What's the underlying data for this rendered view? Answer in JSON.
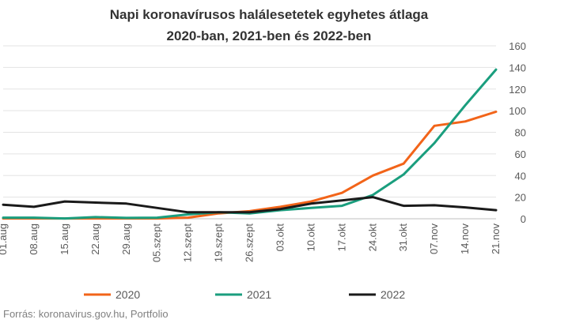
{
  "chart_data": {
    "type": "line",
    "title_lines": [
      "Napi koronavírusos halálesetetek egyhetes átlaga",
      "2020-ban, 2021-ben és 2022-ben"
    ],
    "categories": [
      "01.aug",
      "08.aug",
      "15.aug",
      "22.aug",
      "29.aug",
      "05.szept",
      "12.szept",
      "19.szept",
      "26.szept",
      "03.okt",
      "10.okt",
      "17.okt",
      "24.okt",
      "31.okt",
      "07.nov",
      "14.nov",
      "21.nov"
    ],
    "yticks": [
      "0",
      "20",
      "40",
      "60",
      "80",
      "100",
      "120",
      "140",
      "160"
    ],
    "ylim": [
      0,
      160
    ],
    "grid": true,
    "legend_position": "bottom",
    "series": [
      {
        "name": "2020",
        "color": "#F26419",
        "values": [
          0.3,
          0.3,
          0.3,
          0.3,
          0.3,
          0.3,
          1.0,
          5.0,
          7.0,
          11.0,
          16.0,
          24.0,
          40.0,
          51.0,
          86.0,
          90.0,
          99.0
        ]
      },
      {
        "name": "2021",
        "color": "#1A9E7E",
        "values": [
          1.0,
          1.0,
          0.3,
          1.5,
          0.8,
          1.0,
          4.0,
          6.0,
          5.0,
          8.0,
          10.0,
          12.0,
          22.0,
          41.0,
          70.0,
          105.0,
          138.0
        ]
      },
      {
        "name": "2022",
        "color": "#1A1A1A",
        "values": [
          13.0,
          11.0,
          16.0,
          15.0,
          14.0,
          10.0,
          6.0,
          6.0,
          6.0,
          9.0,
          14.0,
          17.0,
          20.0,
          12.0,
          12.5,
          10.5,
          8.0
        ]
      }
    ],
    "source": "Forrás: koronavirus.gov.hu, Portfolio"
  }
}
